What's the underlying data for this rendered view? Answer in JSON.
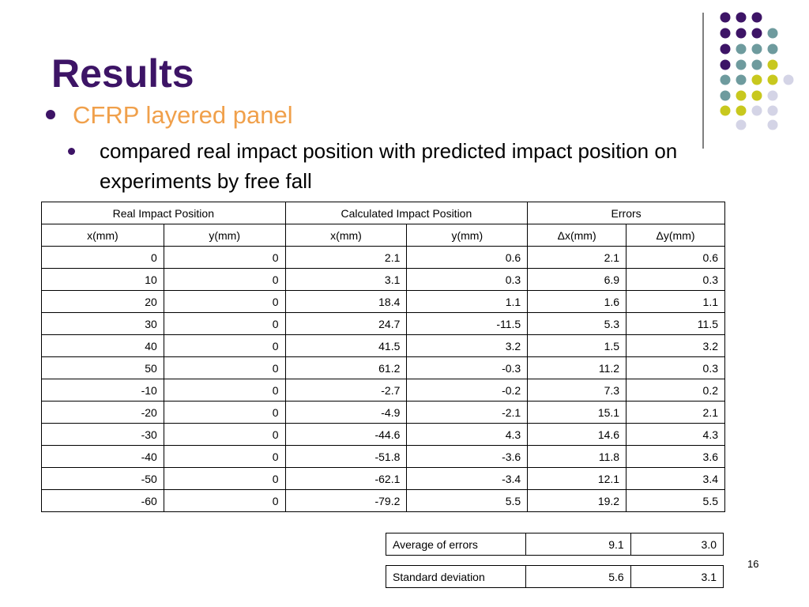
{
  "slide": {
    "title": "Results",
    "bullet_level1": "CFRP layered panel",
    "bullet_level2": "compared real impact position with predicted impact position on experiments by free fall",
    "page_number": "16"
  },
  "table": {
    "group_headers": [
      "Real Impact Position",
      "Calculated Impact Position",
      "Errors"
    ],
    "column_headers": [
      "x(mm)",
      "y(mm)",
      "x(mm)",
      "y(mm)",
      "Δx(mm)",
      "Δy(mm)"
    ],
    "rows": [
      [
        "0",
        "0",
        "2.1",
        "0.6",
        "2.1",
        "0.6"
      ],
      [
        "10",
        "0",
        "3.1",
        "0.3",
        "6.9",
        "0.3"
      ],
      [
        "20",
        "0",
        "18.4",
        "1.1",
        "1.6",
        "1.1"
      ],
      [
        "30",
        "0",
        "24.7",
        "-11.5",
        "5.3",
        "11.5"
      ],
      [
        "40",
        "0",
        "41.5",
        "3.2",
        "1.5",
        "3.2"
      ],
      [
        "50",
        "0",
        "61.2",
        "-0.3",
        "11.2",
        "0.3"
      ],
      [
        "-10",
        "0",
        "-2.7",
        "-0.2",
        "7.3",
        "0.2"
      ],
      [
        "-20",
        "0",
        "-4.9",
        "-2.1",
        "15.1",
        "2.1"
      ],
      [
        "-30",
        "0",
        "-44.6",
        "4.3",
        "14.6",
        "4.3"
      ],
      [
        "-40",
        "0",
        "-51.8",
        "-3.6",
        "11.8",
        "3.6"
      ],
      [
        "-50",
        "0",
        "-62.1",
        "-3.4",
        "12.1",
        "3.4"
      ],
      [
        "-60",
        "0",
        "-79.2",
        "5.5",
        "19.2",
        "5.5"
      ]
    ]
  },
  "summary": {
    "average": {
      "label": "Average of errors",
      "dx": "9.1",
      "dy": "3.0"
    },
    "std_dev": {
      "label": "Standard deviation",
      "dx": "5.6",
      "dy": "3.1"
    }
  },
  "theme": {
    "title_color": "#3d1466",
    "bullet1_color": "#f0a04b",
    "dot_colors": [
      "#3d1466",
      "#6e9b9e",
      "#c8c81e",
      "#d4d4e6"
    ]
  }
}
